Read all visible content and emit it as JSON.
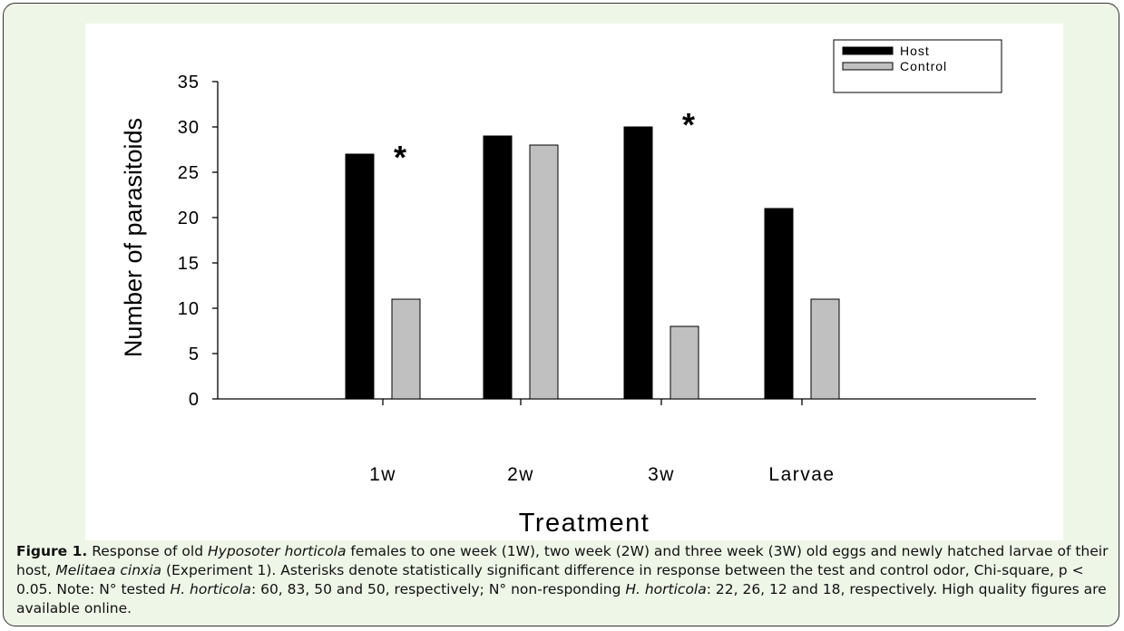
{
  "chart_data": {
    "type": "bar",
    "y_label": "Number of parasitoids",
    "x_label": "Treatment",
    "categories": [
      "1w",
      "2w",
      "3w",
      "Larvae"
    ],
    "series": [
      {
        "name": "Host",
        "color": "#000000",
        "values": [
          27,
          29,
          30,
          21
        ]
      },
      {
        "name": "Control",
        "color": "#c0c0c0",
        "values": [
          11,
          28,
          8,
          11
        ]
      }
    ],
    "ylim": [
      0,
      35
    ],
    "yticks": [
      0,
      5,
      10,
      15,
      20,
      25,
      30,
      35
    ],
    "annotations": [
      "*",
      "*"
    ],
    "legend": "upper right"
  },
  "caption": {
    "label": "Figure 1.",
    "parts": [
      " Response of old ",
      "Hyposoter horticola",
      " females to one week (1W), two week (2W) and three week (3W) old eggs and newly hatched larvae of their host, ",
      "Melitaea cinxia",
      " (Experiment 1). Asterisks denote statistically significant difference in response between the test and control odor, Chi-square, p < 0.05. Note: N° tested ",
      "H. horticola",
      ": 60, 83, 50 and 50, respectively; N° non-responding ",
      "H. horticola",
      ": 22, 26, 12 and 18, respectively. High quality figures are available online."
    ]
  }
}
